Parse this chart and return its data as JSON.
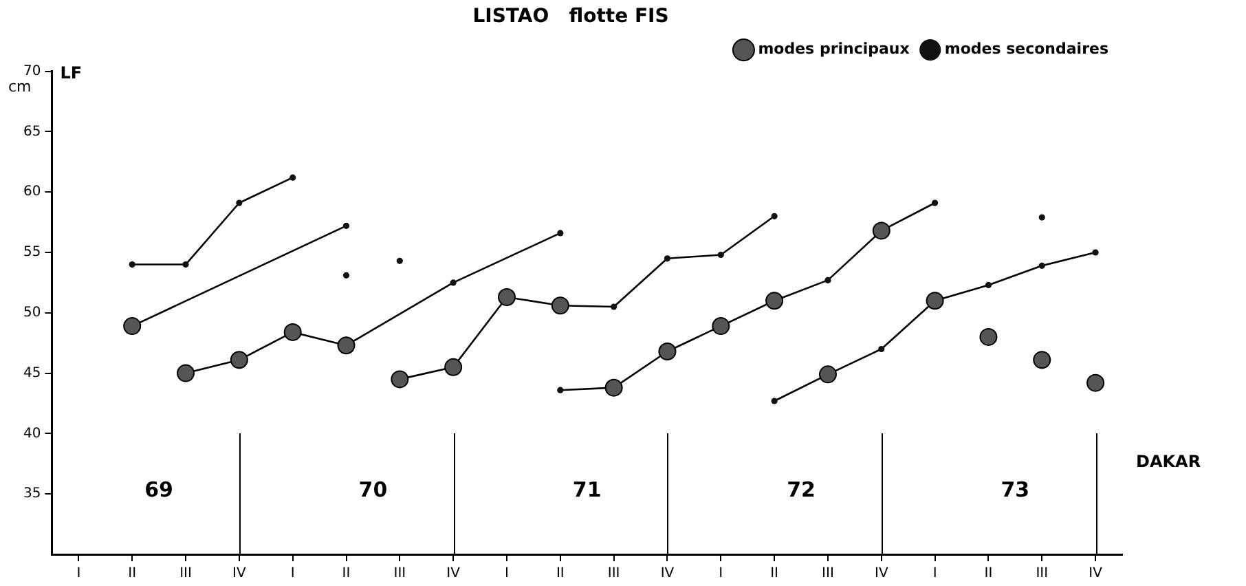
{
  "chart_data": {
    "type": "scatter",
    "title": "LISTAO   flotte FIS",
    "ylabel": "cm",
    "categories": [
      "I",
      "II",
      "III",
      "IV",
      "I",
      "II",
      "III",
      "IV",
      "I",
      "II",
      "III",
      "IV",
      "I",
      "II",
      "III",
      "IV",
      "I",
      "II",
      "III",
      "IV"
    ],
    "series": [
      {
        "type": "line",
        "marker": "none",
        "color": "#000000",
        "values": [
          null,
          54.0,
          54.0,
          59.1,
          61.2,
          null,
          null,
          null,
          null,
          null,
          null,
          null,
          null,
          null,
          null,
          null,
          null,
          null,
          null,
          null
        ]
      },
      {
        "type": "line",
        "marker": "none",
        "color": "#000000",
        "values": [
          null,
          48.9,
          null,
          null,
          null,
          57.2,
          null,
          null,
          null,
          null,
          null,
          null,
          null,
          null,
          null,
          null,
          null,
          null,
          null,
          null
        ]
      },
      {
        "type": "line",
        "marker": "none",
        "color": "#000000",
        "values": [
          null,
          null,
          45.0,
          46.1,
          48.4,
          47.3,
          null,
          52.5,
          null,
          56.6,
          null,
          null,
          null,
          null,
          null,
          null,
          null,
          null,
          null,
          null
        ]
      },
      {
        "type": "line",
        "marker": "none",
        "color": "#000000",
        "values": [
          null,
          null,
          null,
          null,
          null,
          null,
          44.5,
          45.5,
          51.3,
          50.6,
          50.5,
          54.5,
          54.8,
          58.0,
          null,
          null,
          null,
          null,
          null,
          null
        ]
      },
      {
        "type": "line",
        "marker": "none",
        "color": "#000000",
        "values": [
          null,
          null,
          null,
          null,
          null,
          null,
          null,
          null,
          null,
          43.6,
          43.8,
          46.8,
          48.9,
          51.0,
          52.7,
          56.8,
          59.1,
          null,
          null,
          null
        ]
      },
      {
        "type": "line",
        "marker": "none",
        "color": "#000000",
        "values": [
          null,
          null,
          null,
          null,
          null,
          null,
          null,
          null,
          null,
          null,
          null,
          null,
          null,
          42.7,
          44.9,
          47.0,
          51.0,
          52.3,
          53.9,
          55.0
        ]
      },
      {
        "name": "modes principaux",
        "type": "scatter",
        "marker": "circle",
        "color": "#555555",
        "values": [
          null,
          48.9,
          45.0,
          46.1,
          48.4,
          47.3,
          44.5,
          45.5,
          51.3,
          50.6,
          43.8,
          46.8,
          48.9,
          51.0,
          44.9,
          56.8,
          51.0,
          48.0,
          46.1,
          44.2
        ]
      },
      {
        "name": "modes secondaires",
        "type": "scatter",
        "marker": "circle",
        "color": "#111111",
        "values": [
          null,
          54.0,
          54.0,
          59.1,
          61.2,
          57.2,
          54.3,
          52.5,
          null,
          56.6,
          50.5,
          54.5,
          54.8,
          58.0,
          52.7,
          47.0,
          59.1,
          52.3,
          53.9,
          55.0
        ]
      },
      {
        "type": "scatter",
        "marker": "circle",
        "color": "#111111",
        "values": [
          null,
          null,
          null,
          null,
          null,
          53.1,
          null,
          null,
          null,
          43.6,
          null,
          null,
          null,
          42.7,
          null,
          null,
          null,
          null,
          57.9,
          null
        ]
      }
    ],
    "ylim": [
      30,
      70
    ],
    "yticks": [
      35,
      40,
      45,
      50,
      55,
      60,
      65,
      70
    ],
    "grid": false,
    "legend": "top right",
    "annotations": [
      "69",
      "70",
      "71",
      "72",
      "73",
      "DAKAR",
      "LF"
    ]
  }
}
